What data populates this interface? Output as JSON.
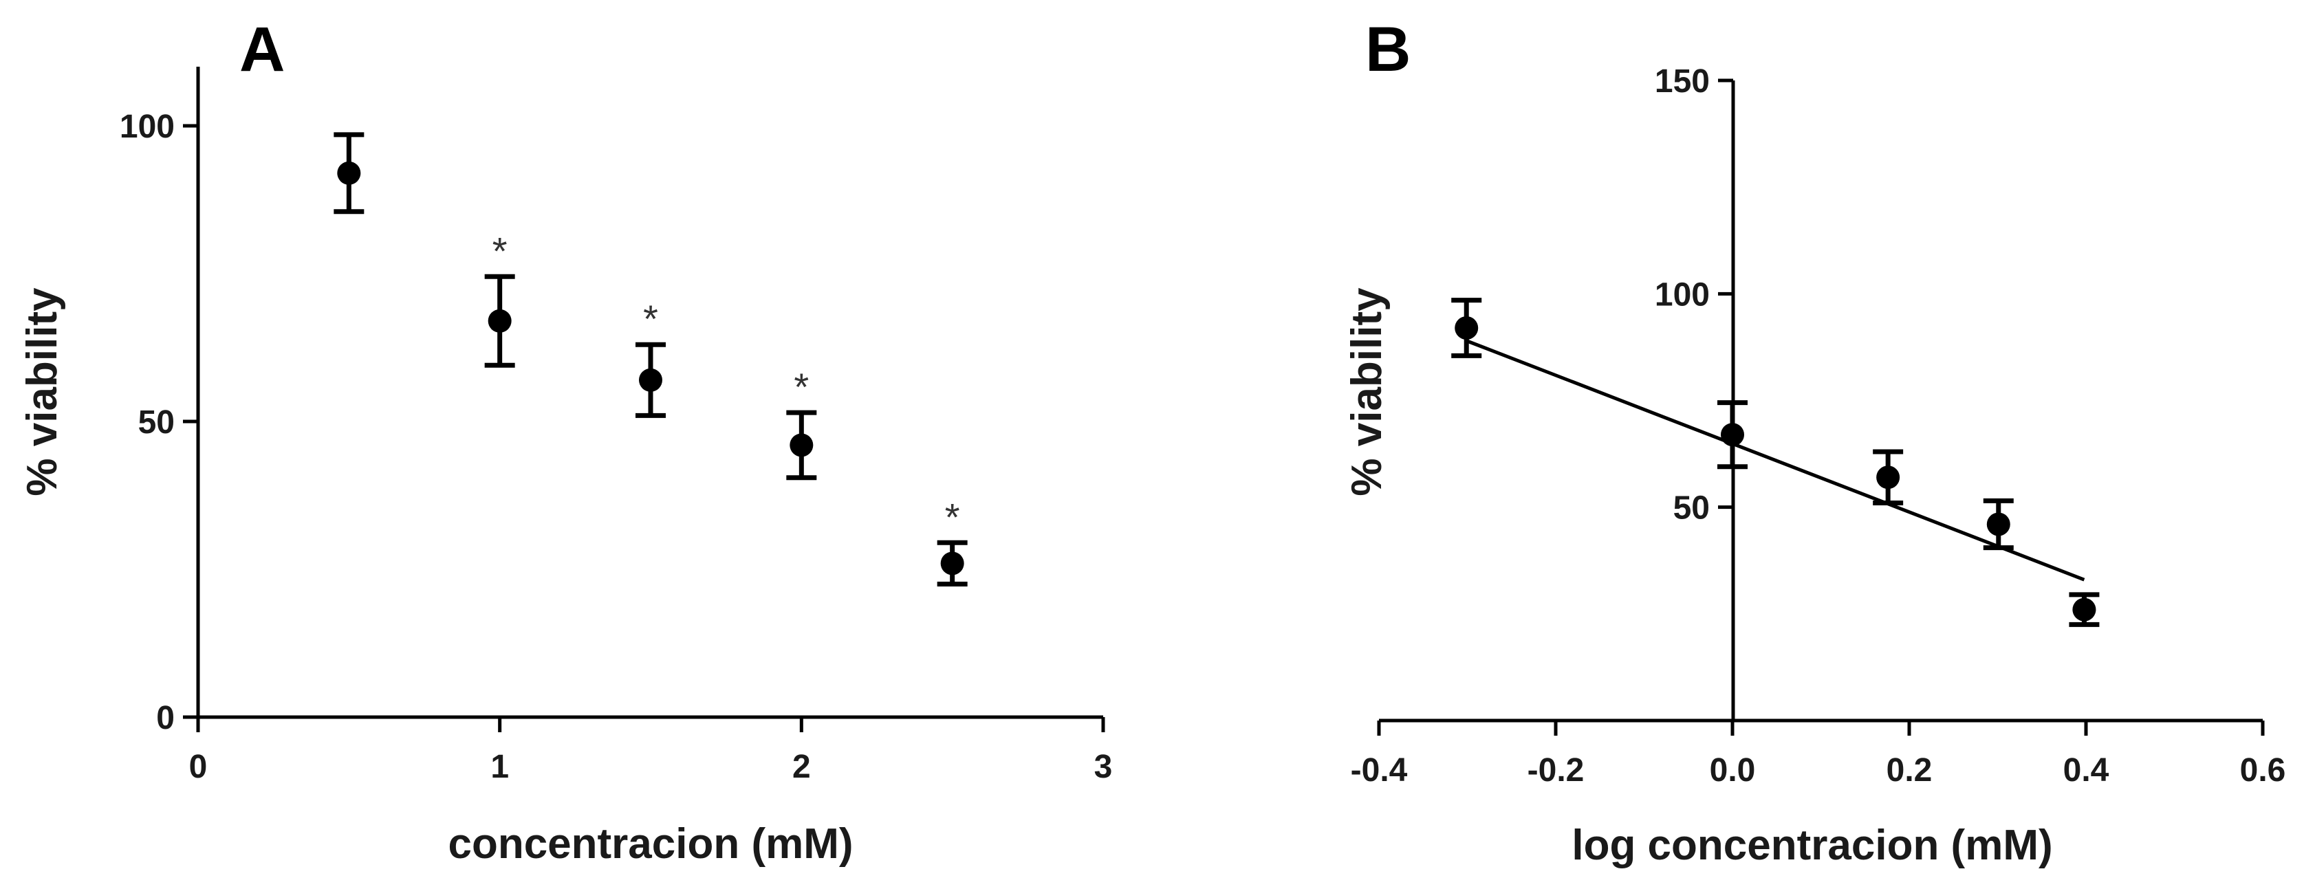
{
  "chart_data": [
    {
      "panel": "A",
      "type": "scatter",
      "xlabel": "concentracion (mM)",
      "ylabel": "% viability",
      "xlim": [
        0,
        3
      ],
      "ylim": [
        0,
        110
      ],
      "xticks": [
        0,
        1,
        2,
        3
      ],
      "yticks": [
        0,
        50,
        100
      ],
      "grid": false,
      "series": [
        {
          "x": [
            0.5,
            1.0,
            1.5,
            2.0,
            2.5
          ],
          "y": [
            92,
            67,
            57,
            46,
            26
          ],
          "error": [
            6.5,
            7.5,
            6,
            5.5,
            3.5
          ],
          "annotations": [
            "",
            "*",
            "*",
            "*",
            "*"
          ]
        }
      ]
    },
    {
      "panel": "B",
      "type": "scatter",
      "xlabel": "log concentracion (mM)",
      "ylabel": "% viability",
      "xlim": [
        -0.4,
        0.6
      ],
      "ylim": [
        0,
        150
      ],
      "xticks": [
        -0.4,
        -0.2,
        0.0,
        0.2,
        0.4,
        0.6
      ],
      "xtick_labels": [
        "-0.4",
        "-0.2",
        "0.0",
        "0.2",
        "0.4",
        "0.6"
      ],
      "yticks": [
        50,
        100,
        150
      ],
      "y_axis_at_x": 0,
      "grid": false,
      "series": [
        {
          "x": [
            -0.301,
            0.0,
            0.176,
            0.301,
            0.398
          ],
          "y": [
            92,
            67,
            57,
            46,
            26
          ],
          "error": [
            6.5,
            7.5,
            6,
            5.5,
            3.5
          ]
        }
      ],
      "fit_line": {
        "x": [
          -0.301,
          0.398
        ],
        "y": [
          89,
          33
        ]
      }
    }
  ]
}
